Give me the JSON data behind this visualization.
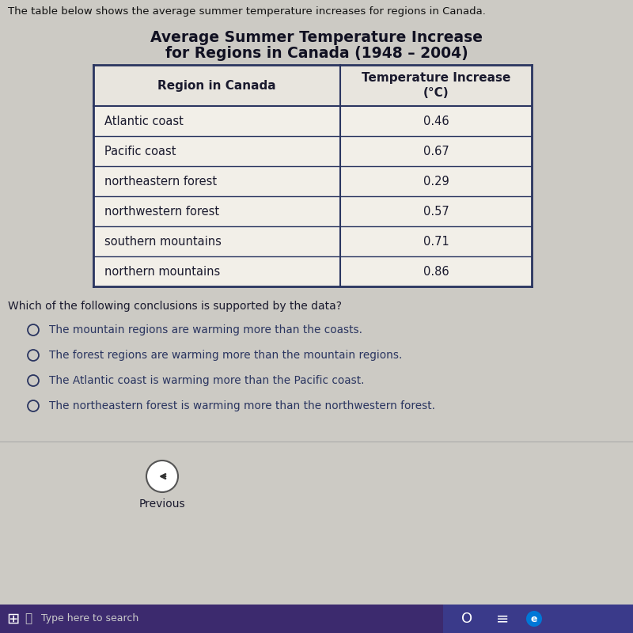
{
  "top_text": "The table below shows the average summer temperature increases for regions in Canada.",
  "title_line1": "Average Summer Temperature Increase",
  "title_line2": "for Regions in Canada (1948 – 2004)",
  "col1_header": "Region in Canada",
  "col2_header_line1": "Temperature Increase",
  "col2_header_line2": "(°C)",
  "regions": [
    "Atlantic coast",
    "Pacific coast",
    "northeastern forest",
    "northwestern forest",
    "southern mountains",
    "northern mountains"
  ],
  "temperatures": [
    "0.46",
    "0.67",
    "0.29",
    "0.57",
    "0.71",
    "0.86"
  ],
  "question": "Which of the following conclusions is supported by the data?",
  "options": [
    "The mountain regions are warming more than the coasts.",
    "The forest regions are warming more than the mountain regions.",
    "The Atlantic coast is warming more than the Pacific coast.",
    "The northeastern forest is warming more than the northwestern forest."
  ],
  "bg_color": "#cccac4",
  "table_bg": "#f2efe8",
  "header_bg": "#e8e5de",
  "border_color": "#2a3560",
  "text_color": "#1a1a2e",
  "title_color": "#111122",
  "top_text_color": "#111111",
  "button_color": "#e8e5de",
  "taskbar_color": "#3c2a6e",
  "taskbar_right_color": "#3a3a8a",
  "option_text_color": "#2a3560"
}
